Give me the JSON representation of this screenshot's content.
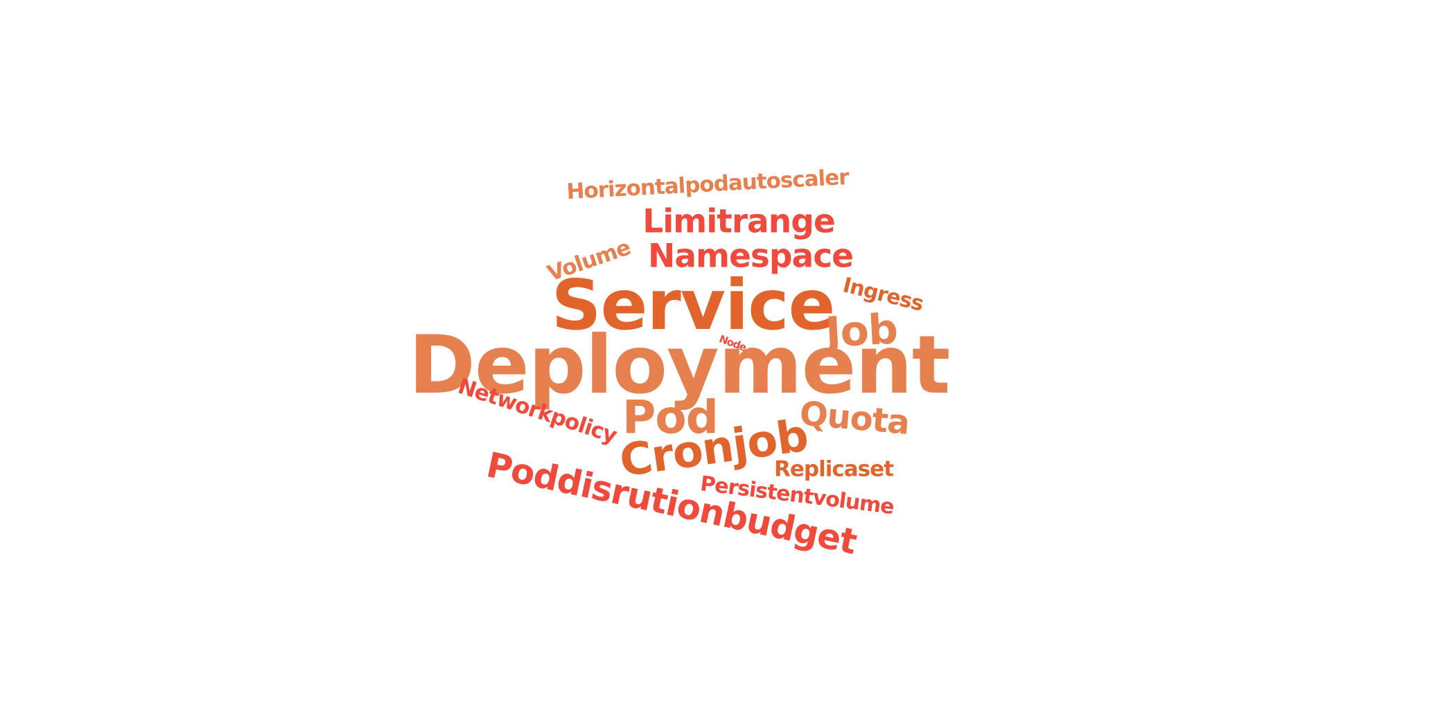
{
  "colors": {
    "background": "#ffffff",
    "orange_light": "#e7804f",
    "orange_dark": "#e2642d",
    "red": "#f04a3c"
  },
  "words": [
    {
      "id": "deployment",
      "text": "Deployment",
      "color": "#e7804f"
    },
    {
      "id": "service",
      "text": "Service",
      "color": "#e2642d"
    },
    {
      "id": "cronjob",
      "text": "Cronjob",
      "color": "#e2642d"
    },
    {
      "id": "pod",
      "text": "Pod",
      "color": "#e7804f"
    },
    {
      "id": "job",
      "text": "Job",
      "color": "#e7804f"
    },
    {
      "id": "poddisrutionbudget",
      "text": "Poddisrutionbudget",
      "color": "#f04a3c"
    },
    {
      "id": "namespace",
      "text": "Namespace",
      "color": "#f04a3c"
    },
    {
      "id": "limitrange",
      "text": "Limitrange",
      "color": "#f04a3c"
    },
    {
      "id": "quota",
      "text": "Quota",
      "color": "#e7804f"
    },
    {
      "id": "horizontalpodautoscaler",
      "text": "Horizontalpodautoscaler",
      "color": "#e7804f"
    },
    {
      "id": "networkpolicy",
      "text": "Networkpolicy",
      "color": "#f04a3c"
    },
    {
      "id": "persistentvolume",
      "text": "Persistentvolume",
      "color": "#f04a3c"
    },
    {
      "id": "replicaset",
      "text": "Replicaset",
      "color": "#e2642d"
    },
    {
      "id": "ingress",
      "text": "Ingress",
      "color": "#e2642d"
    },
    {
      "id": "volume",
      "text": "Volume",
      "color": "#e7804f"
    },
    {
      "id": "node",
      "text": "Node",
      "color": "#f04a3c"
    }
  ]
}
